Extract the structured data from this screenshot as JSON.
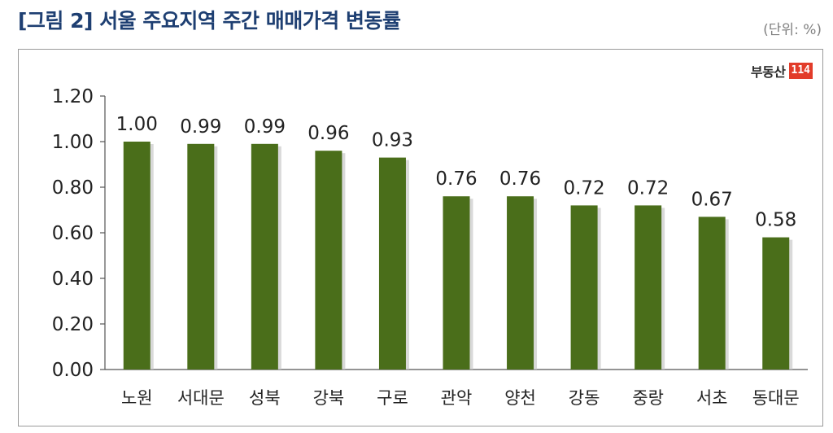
{
  "header": {
    "title": "[그림 2] 서울 주요지역 주간 매매가격 변동률",
    "unit": "(단위: %)"
  },
  "logo": {
    "text": "부동산",
    "badge": "114"
  },
  "colors": {
    "bar": "#4a6e1a",
    "bar_dark": "#3a5713",
    "axis": "#555555",
    "title": "#1e3f72",
    "badge": "#e23c2a"
  },
  "chart_data": {
    "type": "bar",
    "categories": [
      "노원",
      "서대문",
      "성북",
      "강북",
      "구로",
      "관악",
      "양천",
      "강동",
      "중랑",
      "서초",
      "동대문"
    ],
    "values": [
      1.0,
      0.99,
      0.99,
      0.96,
      0.93,
      0.76,
      0.76,
      0.72,
      0.72,
      0.67,
      0.58
    ],
    "value_labels": [
      "1.00",
      "0.99",
      "0.99",
      "0.96",
      "0.93",
      "0.76",
      "0.76",
      "0.72",
      "0.72",
      "0.67",
      "0.58"
    ],
    "ylim": [
      0,
      1.2
    ],
    "yticks": [
      "0.00",
      "0.20",
      "0.40",
      "0.60",
      "0.80",
      "1.00",
      "1.20"
    ],
    "grid": false,
    "legend": "none"
  }
}
